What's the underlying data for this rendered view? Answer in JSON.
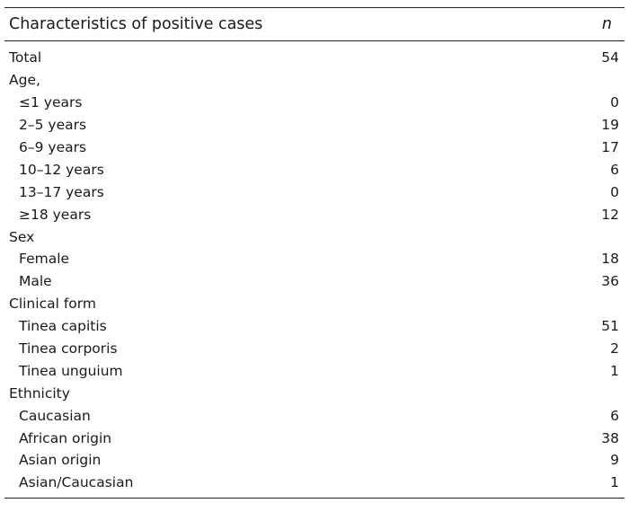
{
  "table": {
    "header": {
      "label": "Characteristics of positive cases",
      "value": "n"
    },
    "rows": [
      {
        "label": "Total",
        "value": "54",
        "indent": false
      },
      {
        "label": "Age,",
        "value": "",
        "indent": false
      },
      {
        "label": "≤1 years",
        "value": "0",
        "indent": true
      },
      {
        "label": "2–5 years",
        "value": "19",
        "indent": true
      },
      {
        "label": "6–9 years",
        "value": "17",
        "indent": true
      },
      {
        "label": "10–12 years",
        "value": "6",
        "indent": true
      },
      {
        "label": "13–17 years",
        "value": "0",
        "indent": true
      },
      {
        "label": "≥18 years",
        "value": "12",
        "indent": true
      },
      {
        "label": "Sex",
        "value": "",
        "indent": false
      },
      {
        "label": "Female",
        "value": "18",
        "indent": true
      },
      {
        "label": "Male",
        "value": "36",
        "indent": true
      },
      {
        "label": "Clinical form",
        "value": "",
        "indent": false
      },
      {
        "label": "Tinea capitis",
        "value": "51",
        "indent": true
      },
      {
        "label": "Tinea corporis",
        "value": "2",
        "indent": true
      },
      {
        "label": "Tinea unguium",
        "value": "1",
        "indent": true
      },
      {
        "label": "Ethnicity",
        "value": "",
        "indent": false
      },
      {
        "label": "Caucasian",
        "value": "6",
        "indent": true
      },
      {
        "label": "African origin",
        "value": "38",
        "indent": true
      },
      {
        "label": "Asian origin",
        "value": "9",
        "indent": true
      },
      {
        "label": "Asian/Caucasian",
        "value": "1",
        "indent": true
      }
    ]
  }
}
